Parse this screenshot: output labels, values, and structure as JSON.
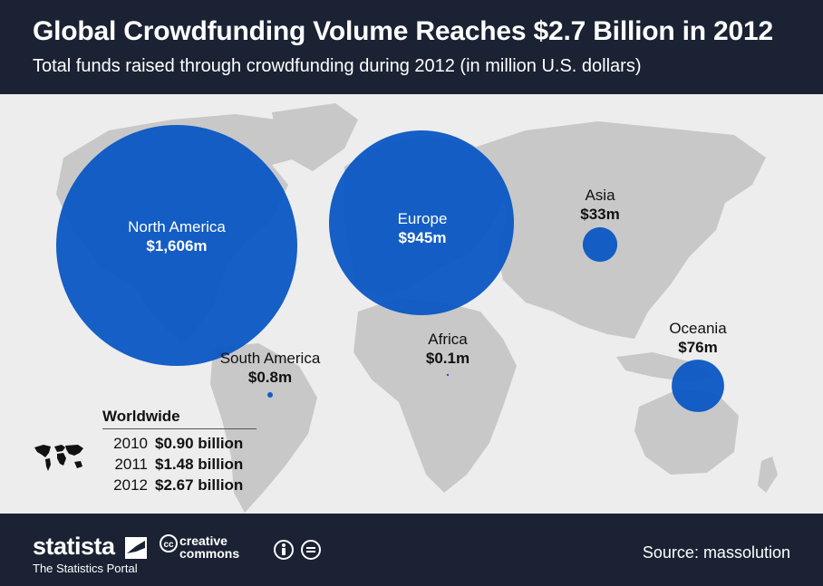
{
  "header": {
    "title": "Global Crowdfunding Volume Reaches $2.7 Billion in 2012",
    "subtitle": "Total funds raised through crowdfunding during 2012 (in million U.S. dollars)"
  },
  "colors": {
    "header_bg": "#1a2233",
    "bubble": "#0a57c4",
    "land": "#c8c8c8",
    "background": "#ededed"
  },
  "chart_data": {
    "type": "bubble-map",
    "title": "Global Crowdfunding Volume Reaches $2.7 Billion in 2012",
    "subtitle": "Total funds raised through crowdfunding during 2012 (in million U.S. dollars)",
    "unit": "million U.S. dollars",
    "regions": [
      {
        "name": "North America",
        "value": 1606,
        "label": "$1,606m"
      },
      {
        "name": "Europe",
        "value": 945,
        "label": "$945m"
      },
      {
        "name": "Asia",
        "value": 33,
        "label": "$33m"
      },
      {
        "name": "Oceania",
        "value": 76,
        "label": "$76m"
      },
      {
        "name": "South America",
        "value": 0.8,
        "label": "$0.8m"
      },
      {
        "name": "Africa",
        "value": 0.1,
        "label": "$0.1m"
      }
    ],
    "worldwide": {
      "heading": "Worldwide",
      "rows": [
        {
          "year": "2010",
          "value": "$0.90 billion"
        },
        {
          "year": "2011",
          "value": "$1.48 billion"
        },
        {
          "year": "2012",
          "value": "$2.67 billion"
        }
      ]
    }
  },
  "footer": {
    "brand": "statista",
    "tagline": "The Statistics Portal",
    "cc_line1": "creative",
    "cc_line2": "commons",
    "source": "Source: massolution"
  },
  "icons": [
    "statista-logo-icon",
    "creative-commons-icon",
    "attribution-icon",
    "no-derivatives-icon",
    "world-map-icon"
  ]
}
